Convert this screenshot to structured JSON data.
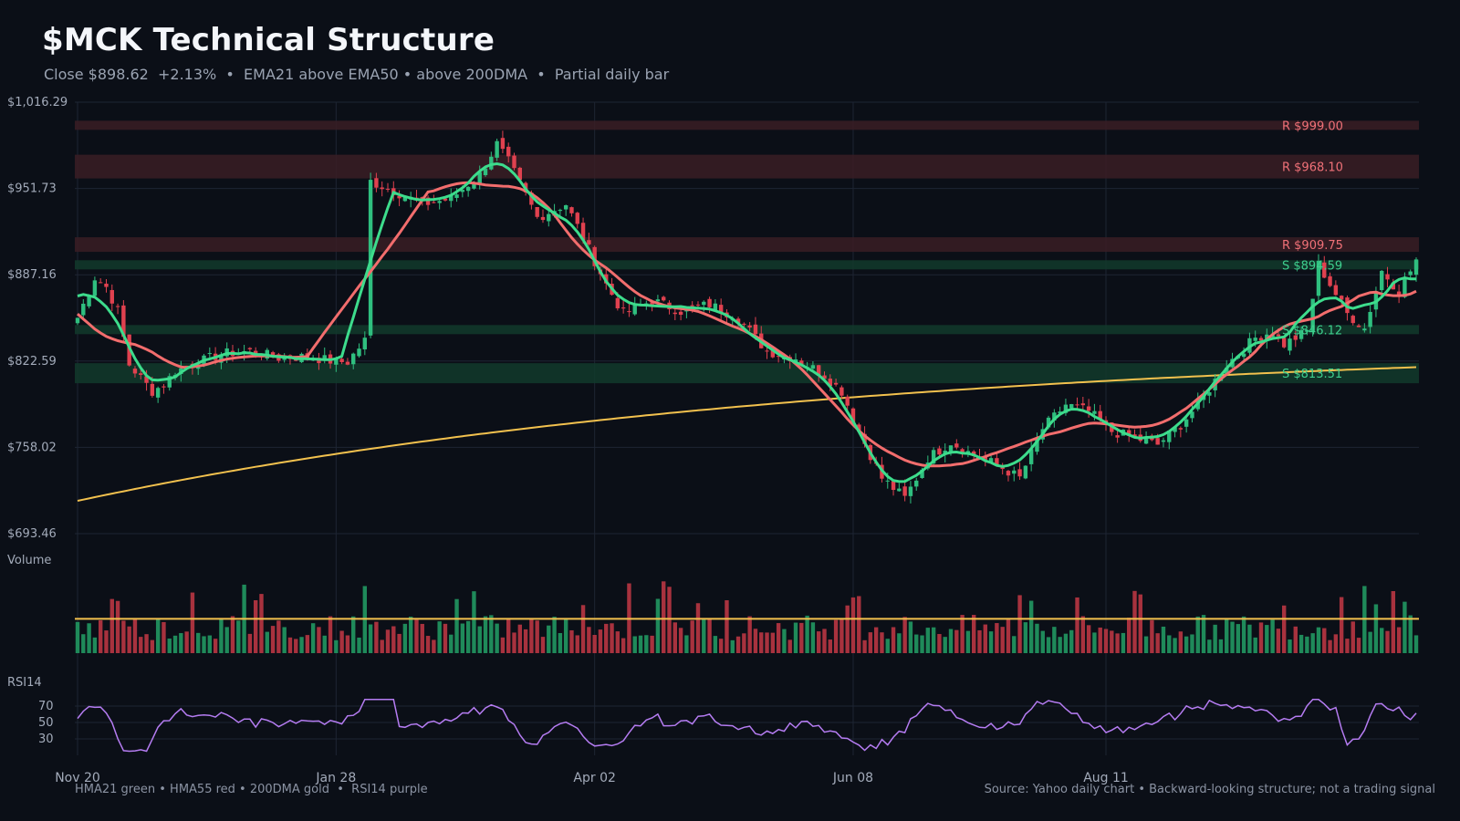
{
  "header": {
    "title": "$MCK Technical Structure",
    "subtitle": "Close $898.62  +2.13%  •  EMA21 above EMA50 • above 200DMA  •  Partial daily bar"
  },
  "footer": {
    "legend_note": "HMA21 green • HMA55 red • 200DMA gold  •  RSI14 purple",
    "source_note": "Source: Yahoo daily chart • Backward-looking structure; not a trading signal"
  },
  "colors": {
    "background": "#0b0f17",
    "up": "#2fbf7f",
    "down": "#e0414f",
    "hma21": "#3ddc8c",
    "hma55": "#f26d6d",
    "dma200": "#f2c14e",
    "rsi": "#b57cf2",
    "grid": "#1e2533",
    "axis_text": "#a3abba",
    "resistance_text": "#f07178",
    "support_text": "#3ecf8e"
  },
  "chart_data": {
    "type": "candlestick",
    "ticker": "MCK",
    "y_ticks": [
      "$1,016.29",
      "$951.73",
      "$887.16",
      "$822.59",
      "$758.02",
      "$693.46"
    ],
    "y_tick_values": [
      1016.29,
      951.73,
      887.16,
      822.59,
      758.02,
      693.46
    ],
    "ylim": [
      693.46,
      1016.29
    ],
    "x_ticks": [
      "Nov 20",
      "Jan 28",
      "Apr 02",
      "Jun 08",
      "Aug 11"
    ],
    "x_tick_index": [
      0,
      45,
      90,
      135,
      179
    ],
    "resistance": [
      {
        "label": "R $999.00",
        "value": 999.0
      },
      {
        "label": "R $968.10",
        "value": 968.1
      },
      {
        "label": "R $909.75",
        "value": 909.75
      }
    ],
    "support": [
      {
        "label": "S $894.59",
        "value": 894.59
      },
      {
        "label": "S $846.12",
        "value": 846.12
      },
      {
        "label": "S $813.51",
        "value": 813.51
      }
    ],
    "volume_label": "Volume",
    "rsi_label": "RSI14",
    "rsi_ticks": [
      70,
      50,
      30
    ],
    "rsi_range": [
      10,
      90
    ],
    "volume_avg": 40,
    "close_anchors": [
      [
        0,
        855
      ],
      [
        3,
        885
      ],
      [
        5,
        878
      ],
      [
        7,
        860
      ],
      [
        9,
        820
      ],
      [
        11,
        810
      ],
      [
        13,
        800
      ],
      [
        15,
        805
      ],
      [
        17,
        815
      ],
      [
        20,
        820
      ],
      [
        25,
        828
      ],
      [
        30,
        830
      ],
      [
        35,
        825
      ],
      [
        40,
        826
      ],
      [
        45,
        822
      ],
      [
        47,
        822
      ],
      [
        50,
        838
      ],
      [
        51,
        957
      ],
      [
        55,
        950
      ],
      [
        60,
        940
      ],
      [
        65,
        944
      ],
      [
        70,
        962
      ],
      [
        73,
        985
      ],
      [
        75,
        972
      ],
      [
        80,
        930
      ],
      [
        85,
        940
      ],
      [
        88,
        915
      ],
      [
        92,
        880
      ],
      [
        95,
        858
      ],
      [
        100,
        868
      ],
      [
        105,
        860
      ],
      [
        110,
        865
      ],
      [
        115,
        855
      ],
      [
        120,
        830
      ],
      [
        125,
        825
      ],
      [
        130,
        812
      ],
      [
        133,
        800
      ],
      [
        136,
        770
      ],
      [
        140,
        735
      ],
      [
        144,
        720
      ],
      [
        148,
        750
      ],
      [
        152,
        762
      ],
      [
        156,
        752
      ],
      [
        160,
        745
      ],
      [
        164,
        735
      ],
      [
        168,
        772
      ],
      [
        172,
        790
      ],
      [
        176,
        785
      ],
      [
        180,
        770
      ],
      [
        184,
        765
      ],
      [
        188,
        760
      ],
      [
        192,
        775
      ],
      [
        195,
        790
      ],
      [
        200,
        820
      ],
      [
        205,
        840
      ],
      [
        208,
        845
      ],
      [
        210,
        835
      ],
      [
        214,
        845
      ],
      [
        216,
        895
      ],
      [
        218,
        880
      ],
      [
        221,
        858
      ],
      [
        224,
        847
      ],
      [
        227,
        890
      ],
      [
        230,
        875
      ],
      [
        232,
        890
      ],
      [
        233,
        899
      ]
    ],
    "candles": 234,
    "last_close": 898.62,
    "change_pct": 2.13
  }
}
